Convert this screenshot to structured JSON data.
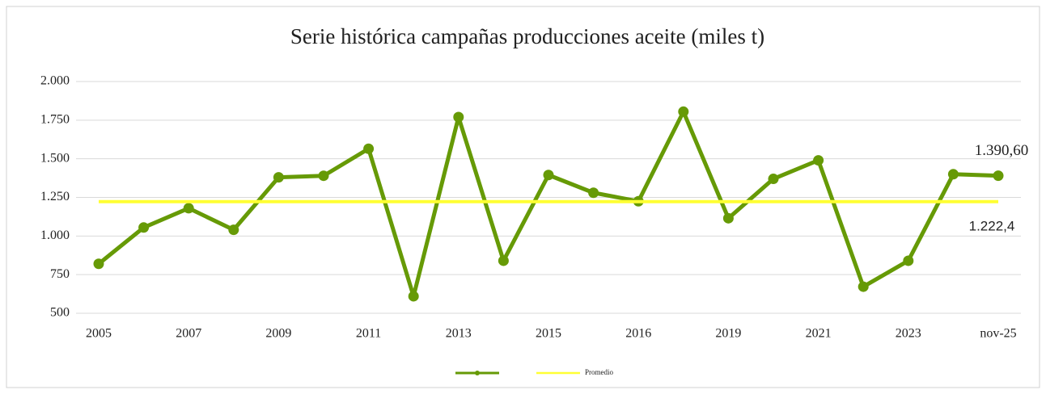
{
  "chart_data": {
    "type": "line",
    "title": "Serie histórica campañas producciones aceite (miles t)",
    "categories": [
      "2005",
      null,
      "2007",
      null,
      "2009",
      null,
      "2011",
      null,
      "2013",
      null,
      "2015",
      null,
      "2016",
      null,
      "2019",
      null,
      "2021",
      null,
      "2023",
      null,
      "nov-25"
    ],
    "series": [
      {
        "color": "#669a06",
        "values": [
          820,
          1055,
          1180,
          1040,
          1380,
          1390,
          1565,
          610,
          1770,
          840,
          1395,
          1280,
          1225,
          1805,
          1115,
          1370,
          1490,
          672,
          840,
          1400,
          1390.6
        ],
        "value_labels": [
          null,
          null,
          null,
          null,
          null,
          null,
          null,
          null,
          null,
          null,
          null,
          null,
          null,
          null,
          null,
          null,
          null,
          null,
          null,
          null,
          "1.390,60"
        ]
      },
      {
        "name": "Promedio",
        "color": "#ffff33",
        "values": [
          1222.4,
          1222.4,
          1222.4,
          1222.4,
          1222.4,
          1222.4,
          1222.4,
          1222.4,
          1222.4,
          1222.4,
          1222.4,
          1222.4,
          1222.4,
          1222.4,
          1222.4,
          1222.4,
          1222.4,
          1222.4,
          1222.4,
          1222.4,
          1222.4
        ],
        "value_labels": [
          null,
          null,
          null,
          null,
          null,
          null,
          null,
          null,
          null,
          null,
          null,
          null,
          null,
          null,
          null,
          null,
          null,
          null,
          null,
          null,
          "1.222,4"
        ]
      }
    ],
    "ylim": [
      500,
      2000
    ],
    "yticks": [
      500,
      750,
      {
        "value": 1000,
        "label": "1.000"
      },
      {
        "value": 1250,
        "label": "1.250"
      },
      {
        "value": 1500,
        "label": "1.500"
      },
      {
        "value": 1750,
        "label": "1.750"
      },
      {
        "value": 2000,
        "label": "2.000"
      }
    ],
    "grid": true,
    "legend": "bottom"
  }
}
